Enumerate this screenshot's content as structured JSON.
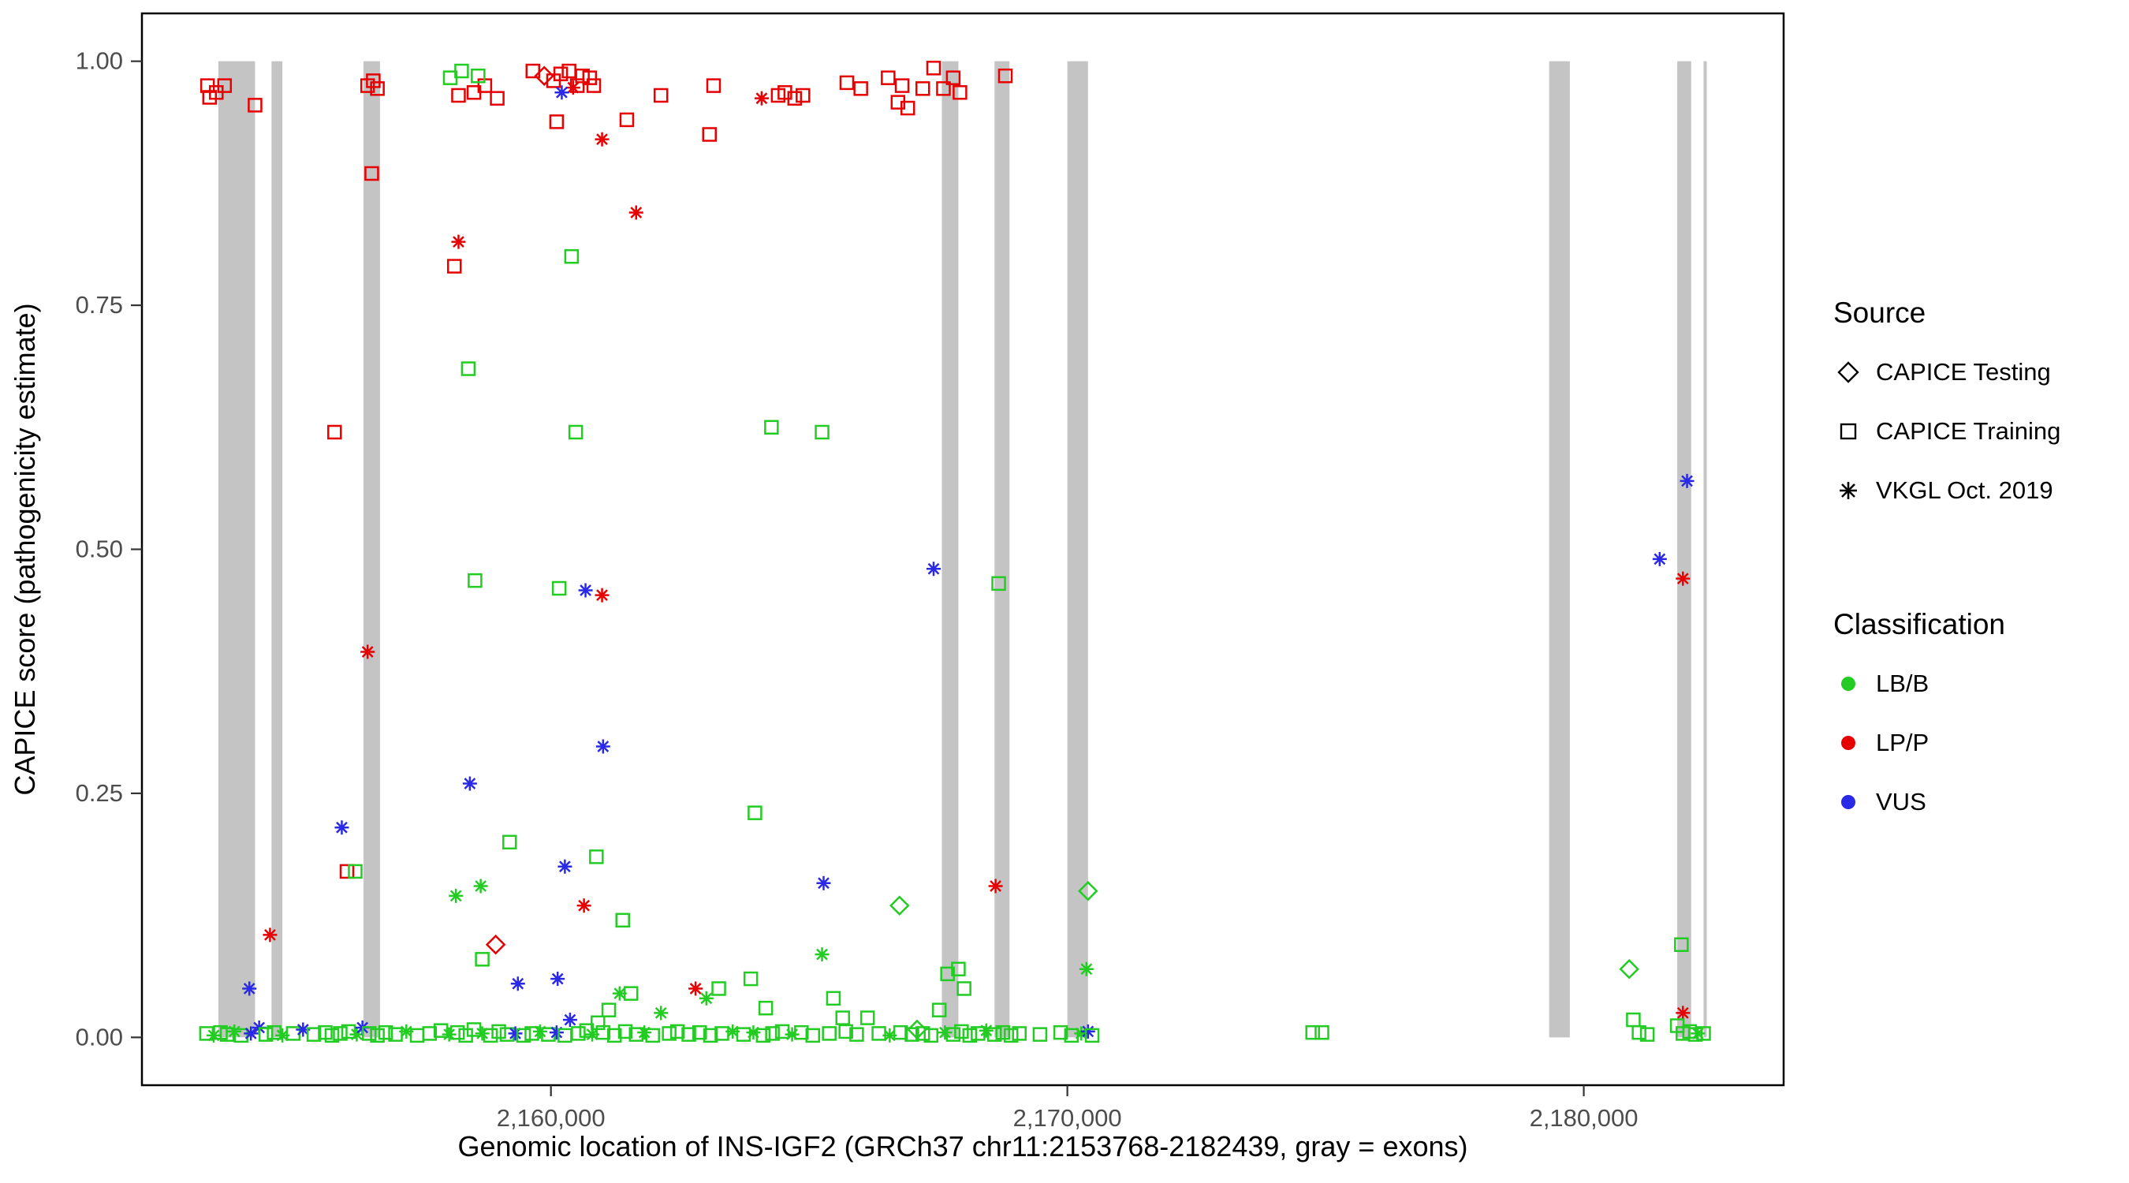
{
  "legend": {
    "source": {
      "title": "Source",
      "items": [
        {
          "label": "CAPICE Testing",
          "shape": "diamond"
        },
        {
          "label": "CAPICE Training",
          "shape": "square"
        },
        {
          "label": "VKGL Oct. 2019",
          "shape": "asterisk"
        }
      ]
    },
    "classification": {
      "title": "Classification",
      "items": [
        {
          "label": "LB/B",
          "color_code": "g"
        },
        {
          "label": "LP/P",
          "color_code": "r"
        },
        {
          "label": "VUS",
          "color_code": "b"
        }
      ]
    }
  },
  "chart_data": {
    "type": "scatter",
    "title": "",
    "xlabel": "Genomic location of INS-IGF2 (GRCh37 chr11:2153768-2182439, gray = exons)",
    "ylabel": "CAPICE score (pathogenicity estimate)",
    "xlim": [
      2152080,
      2183870
    ],
    "ylim": [
      -0.049,
      1.049
    ],
    "xticks": [
      {
        "value": 2160000,
        "label": "2,160,000"
      },
      {
        "value": 2170000,
        "label": "2,170,000"
      },
      {
        "value": 2180000,
        "label": "2,180,000"
      }
    ],
    "yticks": [
      {
        "value": 0.0,
        "label": "0.00"
      },
      {
        "value": 0.25,
        "label": "0.25"
      },
      {
        "value": 0.5,
        "label": "0.50"
      },
      {
        "value": 0.75,
        "label": "0.75"
      },
      {
        "value": 1.0,
        "label": "1.00"
      }
    ],
    "grid": false,
    "legend_position": "right",
    "exon_note": "gray vertical bands mark exons, drawn from score 0 to 1",
    "exon_color": "#C4C4C4",
    "exons": [
      [
        2153560,
        2154270
      ],
      [
        2154590,
        2154800
      ],
      [
        2156370,
        2156690
      ],
      [
        2167570,
        2167890
      ],
      [
        2168590,
        2168880
      ],
      [
        2170000,
        2170400
      ],
      [
        2179330,
        2179730
      ],
      [
        2181810,
        2182080
      ],
      [
        2182320,
        2182370
      ]
    ],
    "colors": {
      "g": "#22CC22",
      "r": "#E60000",
      "b": "#2929E6"
    },
    "class_codes": {
      "g": "LB/B",
      "r": "LP/P",
      "b": "VUS"
    },
    "shape_codes": {
      "s": "CAPICE Training (open square)",
      "d": "CAPICE Testing (open diamond)",
      "a": "VKGL Oct. 2019 (asterisk)"
    },
    "point_encoding": "[genomic_position, capice_score, shape_code, class_code]",
    "points": [
      [
        2153350,
        0.975,
        "s",
        "r"
      ],
      [
        2153520,
        0.968,
        "s",
        "r"
      ],
      [
        2153390,
        0.963,
        "s",
        "r"
      ],
      [
        2153680,
        0.975,
        "s",
        "r"
      ],
      [
        2154270,
        0.955,
        "s",
        "r"
      ],
      [
        2155810,
        0.62,
        "s",
        "r"
      ],
      [
        2156050,
        0.17,
        "s",
        "r"
      ],
      [
        2156450,
        0.975,
        "s",
        "r"
      ],
      [
        2156560,
        0.98,
        "s",
        "r"
      ],
      [
        2156640,
        0.972,
        "s",
        "r"
      ],
      [
        2156530,
        0.885,
        "s",
        "r"
      ],
      [
        2158210,
        0.965,
        "s",
        "r"
      ],
      [
        2158510,
        0.968,
        "s",
        "r"
      ],
      [
        2158720,
        0.975,
        "s",
        "r"
      ],
      [
        2158960,
        0.962,
        "s",
        "r"
      ],
      [
        2158130,
        0.79,
        "s",
        "r"
      ],
      [
        2159650,
        0.99,
        "s",
        "r"
      ],
      [
        2160050,
        0.98,
        "s",
        "r"
      ],
      [
        2160190,
        0.987,
        "s",
        "r"
      ],
      [
        2160350,
        0.99,
        "s",
        "r"
      ],
      [
        2160510,
        0.975,
        "s",
        "r"
      ],
      [
        2160610,
        0.985,
        "s",
        "r"
      ],
      [
        2160750,
        0.983,
        "s",
        "r"
      ],
      [
        2160830,
        0.975,
        "s",
        "r"
      ],
      [
        2160110,
        0.938,
        "s",
        "r"
      ],
      [
        2161470,
        0.94,
        "s",
        "r"
      ],
      [
        2162130,
        0.965,
        "s",
        "r"
      ],
      [
        2163070,
        0.925,
        "s",
        "r"
      ],
      [
        2163150,
        0.975,
        "s",
        "r"
      ],
      [
        2164400,
        0.965,
        "s",
        "r"
      ],
      [
        2164530,
        0.968,
        "s",
        "r"
      ],
      [
        2164720,
        0.962,
        "s",
        "r"
      ],
      [
        2164880,
        0.965,
        "s",
        "r"
      ],
      [
        2165730,
        0.978,
        "s",
        "r"
      ],
      [
        2166000,
        0.972,
        "s",
        "r"
      ],
      [
        2166530,
        0.983,
        "s",
        "r"
      ],
      [
        2166720,
        0.958,
        "s",
        "r"
      ],
      [
        2166800,
        0.975,
        "s",
        "r"
      ],
      [
        2166910,
        0.952,
        "s",
        "r"
      ],
      [
        2167200,
        0.972,
        "s",
        "r"
      ],
      [
        2167410,
        0.993,
        "s",
        "r"
      ],
      [
        2167600,
        0.972,
        "s",
        "r"
      ],
      [
        2167790,
        0.983,
        "s",
        "r"
      ],
      [
        2167920,
        0.968,
        "s",
        "r"
      ],
      [
        2168800,
        0.985,
        "s",
        "r"
      ],
      [
        2159870,
        0.985,
        "d",
        "r"
      ],
      [
        2158930,
        0.095,
        "d",
        "r"
      ],
      [
        2158210,
        0.815,
        "a",
        "r"
      ],
      [
        2156450,
        0.395,
        "a",
        "r"
      ],
      [
        2154560,
        0.105,
        "a",
        "r"
      ],
      [
        2160430,
        0.973,
        "a",
        "r"
      ],
      [
        2160990,
        0.92,
        "a",
        "r"
      ],
      [
        2161650,
        0.845,
        "a",
        "r"
      ],
      [
        2160990,
        0.453,
        "a",
        "r"
      ],
      [
        2160640,
        0.135,
        "a",
        "r"
      ],
      [
        2162800,
        0.05,
        "a",
        "r"
      ],
      [
        2164080,
        0.962,
        "a",
        "r"
      ],
      [
        2168610,
        0.155,
        "a",
        "r"
      ],
      [
        2181920,
        0.47,
        "a",
        "r"
      ],
      [
        2181920,
        0.025,
        "a",
        "r"
      ],
      [
        2154160,
        0.05,
        "a",
        "b"
      ],
      [
        2155950,
        0.215,
        "a",
        "b"
      ],
      [
        2158430,
        0.26,
        "a",
        "b"
      ],
      [
        2159360,
        0.055,
        "a",
        "b"
      ],
      [
        2160130,
        0.06,
        "a",
        "b"
      ],
      [
        2160270,
        0.175,
        "a",
        "b"
      ],
      [
        2160210,
        0.968,
        "a",
        "b"
      ],
      [
        2160670,
        0.458,
        "a",
        "b"
      ],
      [
        2161010,
        0.298,
        "a",
        "b"
      ],
      [
        2165280,
        0.158,
        "a",
        "b"
      ],
      [
        2167410,
        0.48,
        "a",
        "b"
      ],
      [
        2182000,
        0.57,
        "a",
        "b"
      ],
      [
        2181470,
        0.49,
        "a",
        "b"
      ],
      [
        2156210,
        0.17,
        "s",
        "g"
      ],
      [
        2158050,
        0.983,
        "s",
        "g"
      ],
      [
        2158270,
        0.99,
        "s",
        "g"
      ],
      [
        2158590,
        0.985,
        "s",
        "g"
      ],
      [
        2158400,
        0.685,
        "s",
        "g"
      ],
      [
        2158530,
        0.468,
        "s",
        "g"
      ],
      [
        2159200,
        0.2,
        "s",
        "g"
      ],
      [
        2158670,
        0.08,
        "s",
        "g"
      ],
      [
        2160400,
        0.8,
        "s",
        "g"
      ],
      [
        2160480,
        0.62,
        "s",
        "g"
      ],
      [
        2160160,
        0.46,
        "s",
        "g"
      ],
      [
        2160880,
        0.185,
        "s",
        "g"
      ],
      [
        2161390,
        0.12,
        "s",
        "g"
      ],
      [
        2163250,
        0.05,
        "s",
        "g"
      ],
      [
        2163870,
        0.06,
        "s",
        "g"
      ],
      [
        2164160,
        0.03,
        "s",
        "g"
      ],
      [
        2163950,
        0.23,
        "s",
        "g"
      ],
      [
        2164270,
        0.625,
        "s",
        "g"
      ],
      [
        2165250,
        0.62,
        "s",
        "g"
      ],
      [
        2165470,
        0.04,
        "s",
        "g"
      ],
      [
        2165650,
        0.02,
        "s",
        "g"
      ],
      [
        2166130,
        0.02,
        "s",
        "g"
      ],
      [
        2167680,
        0.065,
        "s",
        "g"
      ],
      [
        2167890,
        0.07,
        "s",
        "g"
      ],
      [
        2168000,
        0.05,
        "s",
        "g"
      ],
      [
        2168670,
        0.465,
        "s",
        "g"
      ],
      [
        2174750,
        0.005,
        "s",
        "g"
      ],
      [
        2174930,
        0.005,
        "s",
        "g"
      ],
      [
        2180960,
        0.018,
        "s",
        "g"
      ],
      [
        2181070,
        0.005,
        "s",
        "g"
      ],
      [
        2181230,
        0.003,
        "s",
        "g"
      ],
      [
        2181890,
        0.095,
        "s",
        "g"
      ],
      [
        2181810,
        0.012,
        "s",
        "g"
      ],
      [
        2181920,
        0.004,
        "s",
        "g"
      ],
      [
        2182050,
        0.006,
        "s",
        "g"
      ],
      [
        2182160,
        0.003,
        "s",
        "g"
      ],
      [
        2182320,
        0.004,
        "s",
        "g"
      ],
      [
        2158640,
        0.155,
        "a",
        "g"
      ],
      [
        2158160,
        0.145,
        "a",
        "g"
      ],
      [
        2163010,
        0.04,
        "a",
        "g"
      ],
      [
        2165250,
        0.085,
        "a",
        "g"
      ],
      [
        2170370,
        0.07,
        "a",
        "g"
      ],
      [
        2182210,
        0.004,
        "a",
        "g"
      ],
      [
        2166750,
        0.135,
        "d",
        "g"
      ],
      [
        2170400,
        0.15,
        "d",
        "g"
      ],
      [
        2180880,
        0.07,
        "d",
        "g"
      ],
      [
        2167090,
        0.008,
        "d",
        "g"
      ],
      [
        2153330,
        0.004,
        "s",
        "g"
      ],
      [
        2153470,
        0.002,
        "a",
        "g"
      ],
      [
        2153600,
        0.005,
        "s",
        "g"
      ],
      [
        2153730,
        0.003,
        "s",
        "g"
      ],
      [
        2153870,
        0.006,
        "a",
        "g"
      ],
      [
        2154000,
        0.002,
        "s",
        "g"
      ],
      [
        2154190,
        0.004,
        "a",
        "b"
      ],
      [
        2154350,
        0.01,
        "a",
        "b"
      ],
      [
        2154480,
        0.003,
        "s",
        "g"
      ],
      [
        2154640,
        0.005,
        "s",
        "g"
      ],
      [
        2154800,
        0.002,
        "a",
        "g"
      ],
      [
        2155010,
        0.004,
        "s",
        "g"
      ],
      [
        2155200,
        0.008,
        "a",
        "b"
      ],
      [
        2155410,
        0.003,
        "s",
        "g"
      ],
      [
        2155630,
        0.005,
        "s",
        "g"
      ],
      [
        2155760,
        0.002,
        "s",
        "g"
      ],
      [
        2155920,
        0.004,
        "s",
        "g"
      ],
      [
        2156080,
        0.006,
        "s",
        "g"
      ],
      [
        2156240,
        0.003,
        "a",
        "g"
      ],
      [
        2156350,
        0.01,
        "a",
        "b"
      ],
      [
        2156480,
        0.004,
        "s",
        "g"
      ],
      [
        2156640,
        0.002,
        "s",
        "g"
      ],
      [
        2156800,
        0.005,
        "s",
        "g"
      ],
      [
        2156990,
        0.003,
        "s",
        "g"
      ],
      [
        2157200,
        0.006,
        "a",
        "g"
      ],
      [
        2157410,
        0.002,
        "s",
        "g"
      ],
      [
        2157650,
        0.004,
        "s",
        "g"
      ],
      [
        2157870,
        0.007,
        "s",
        "g"
      ],
      [
        2158030,
        0.003,
        "a",
        "g"
      ],
      [
        2158190,
        0.005,
        "s",
        "g"
      ],
      [
        2158350,
        0.002,
        "s",
        "g"
      ],
      [
        2158510,
        0.008,
        "s",
        "g"
      ],
      [
        2158670,
        0.004,
        "a",
        "g"
      ],
      [
        2158830,
        0.002,
        "s",
        "g"
      ],
      [
        2158990,
        0.006,
        "s",
        "g"
      ],
      [
        2159150,
        0.003,
        "s",
        "g"
      ],
      [
        2159310,
        0.004,
        "a",
        "b"
      ],
      [
        2159470,
        0.002,
        "s",
        "g"
      ],
      [
        2159630,
        0.004,
        "s",
        "g"
      ],
      [
        2159790,
        0.006,
        "a",
        "g"
      ],
      [
        2159950,
        0.003,
        "s",
        "g"
      ],
      [
        2160110,
        0.005,
        "a",
        "b"
      ],
      [
        2160270,
        0.002,
        "s",
        "g"
      ],
      [
        2160370,
        0.018,
        "a",
        "b"
      ],
      [
        2160530,
        0.004,
        "s",
        "g"
      ],
      [
        2160690,
        0.007,
        "s",
        "g"
      ],
      [
        2160800,
        0.003,
        "a",
        "g"
      ],
      [
        2160910,
        0.015,
        "s",
        "g"
      ],
      [
        2161010,
        0.005,
        "s",
        "g"
      ],
      [
        2161120,
        0.028,
        "s",
        "g"
      ],
      [
        2161230,
        0.002,
        "s",
        "g"
      ],
      [
        2161330,
        0.045,
        "a",
        "g"
      ],
      [
        2161440,
        0.006,
        "s",
        "g"
      ],
      [
        2161550,
        0.045,
        "s",
        "g"
      ],
      [
        2161650,
        0.003,
        "s",
        "g"
      ],
      [
        2161810,
        0.005,
        "a",
        "g"
      ],
      [
        2161970,
        0.002,
        "s",
        "g"
      ],
      [
        2162130,
        0.025,
        "a",
        "g"
      ],
      [
        2162290,
        0.004,
        "s",
        "g"
      ],
      [
        2162450,
        0.006,
        "s",
        "g"
      ],
      [
        2162670,
        0.003,
        "s",
        "g"
      ],
      [
        2162880,
        0.005,
        "s",
        "g"
      ],
      [
        2163090,
        0.002,
        "s",
        "g"
      ],
      [
        2163310,
        0.004,
        "s",
        "g"
      ],
      [
        2163520,
        0.006,
        "a",
        "g"
      ],
      [
        2163730,
        0.003,
        "s",
        "g"
      ],
      [
        2163920,
        0.005,
        "a",
        "g"
      ],
      [
        2164110,
        0.002,
        "s",
        "g"
      ],
      [
        2164290,
        0.004,
        "s",
        "g"
      ],
      [
        2164480,
        0.006,
        "s",
        "g"
      ],
      [
        2164670,
        0.003,
        "a",
        "g"
      ],
      [
        2164850,
        0.005,
        "s",
        "g"
      ],
      [
        2165070,
        0.002,
        "s",
        "g"
      ],
      [
        2165390,
        0.004,
        "s",
        "g"
      ],
      [
        2165710,
        0.006,
        "s",
        "g"
      ],
      [
        2165920,
        0.003,
        "s",
        "g"
      ],
      [
        2166350,
        0.004,
        "s",
        "g"
      ],
      [
        2166560,
        0.002,
        "a",
        "g"
      ],
      [
        2166770,
        0.005,
        "s",
        "g"
      ],
      [
        2166990,
        0.003,
        "s",
        "g"
      ],
      [
        2167200,
        0.004,
        "s",
        "g"
      ],
      [
        2167360,
        0.002,
        "s",
        "g"
      ],
      [
        2167520,
        0.028,
        "s",
        "g"
      ],
      [
        2167630,
        0.005,
        "a",
        "g"
      ],
      [
        2167790,
        0.003,
        "s",
        "g"
      ],
      [
        2167950,
        0.006,
        "s",
        "g"
      ],
      [
        2168110,
        0.002,
        "s",
        "g"
      ],
      [
        2168270,
        0.004,
        "s",
        "g"
      ],
      [
        2168430,
        0.007,
        "a",
        "g"
      ],
      [
        2168590,
        0.003,
        "s",
        "g"
      ],
      [
        2168750,
        0.005,
        "s",
        "g"
      ],
      [
        2168910,
        0.002,
        "s",
        "g"
      ],
      [
        2169070,
        0.004,
        "s",
        "g"
      ],
      [
        2169470,
        0.003,
        "s",
        "g"
      ],
      [
        2169870,
        0.005,
        "s",
        "g"
      ],
      [
        2170080,
        0.002,
        "s",
        "g"
      ],
      [
        2170270,
        0.004,
        "a",
        "g"
      ],
      [
        2170400,
        0.006,
        "a",
        "b"
      ],
      [
        2170480,
        0.002,
        "s",
        "g"
      ]
    ]
  }
}
